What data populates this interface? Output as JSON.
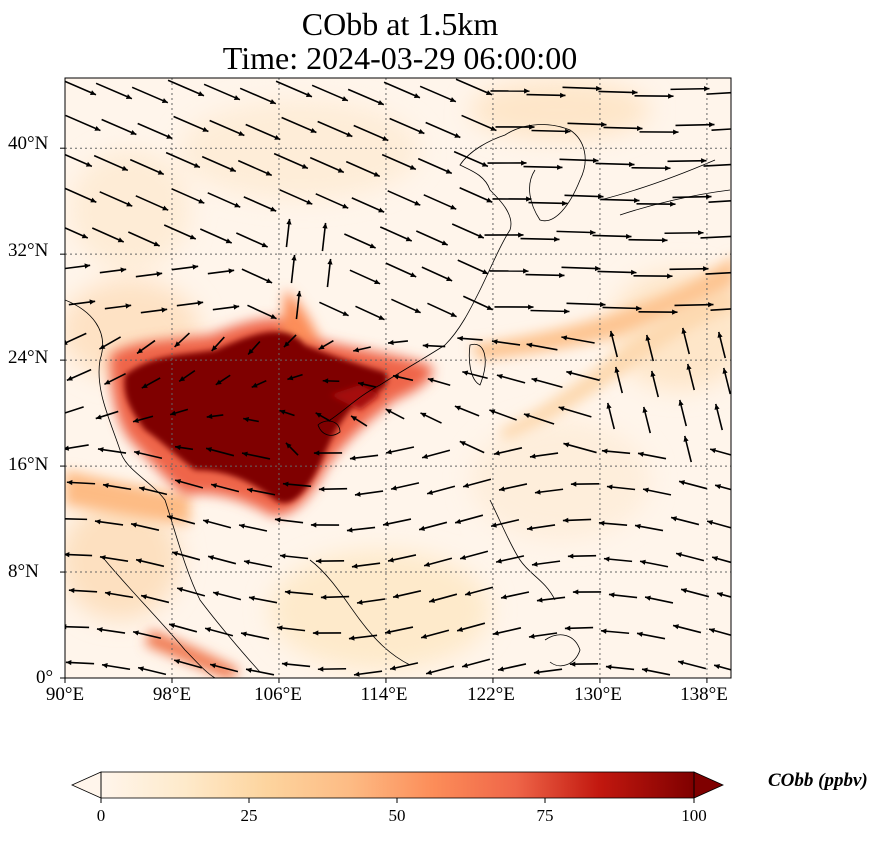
{
  "title": {
    "line1": "CObb at 1.5km",
    "line2": "Time: 2024-03-29 06:00:00"
  },
  "axes": {
    "x_ticks": [
      "90°E",
      "98°E",
      "106°E",
      "114°E",
      "122°E",
      "130°E",
      "138°E"
    ],
    "y_ticks": [
      "40°N",
      "32°N",
      "24°N",
      "16°N",
      "8°N",
      "0°"
    ],
    "lon_range": [
      90,
      139.8
    ],
    "lat_range": [
      0,
      45.3
    ],
    "gridlines": "dotted"
  },
  "colorbar": {
    "label": "CObb (ppbv)",
    "ticks": [
      "0",
      "25",
      "50",
      "75",
      "100"
    ],
    "range": [
      0,
      100
    ],
    "extend": "both",
    "colormap": [
      "#fff5eb",
      "#fdd49e",
      "#fdbb84",
      "#fc8d59",
      "#ef6548",
      "#d7301f",
      "#b30000",
      "#7f0000"
    ]
  },
  "colors": {
    "plume_core": "#7f0000",
    "plume_mid": "#d7301f",
    "plume_light": "#fdbb84",
    "background_field": "#fff5eb",
    "wind_arrows": "#000000"
  }
}
